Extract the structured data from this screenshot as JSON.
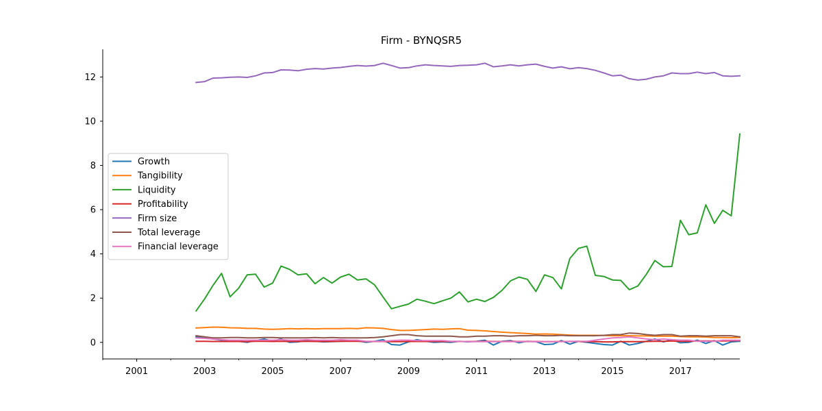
{
  "chart_data": {
    "type": "line",
    "title": "Firm - BYNQSR5",
    "xlabel": "",
    "ylabel": "",
    "xlim": [
      "2000-01-01",
      "2018-10-01"
    ],
    "ylim": [
      -0.75,
      13.25
    ],
    "x_ticks": [
      "2001",
      "2003",
      "2005",
      "2007",
      "2009",
      "2011",
      "2013",
      "2015",
      "2017"
    ],
    "y_ticks": [
      0,
      2,
      4,
      6,
      8,
      10,
      12
    ],
    "grid": false,
    "legend_position": "center-left",
    "x": [
      "2002-10-01",
      "2003-01-01",
      "2003-04-01",
      "2003-07-01",
      "2003-10-01",
      "2004-01-01",
      "2004-04-01",
      "2004-07-01",
      "2004-10-01",
      "2005-01-01",
      "2005-04-01",
      "2005-07-01",
      "2005-10-01",
      "2006-01-01",
      "2006-04-01",
      "2006-07-01",
      "2006-10-01",
      "2007-01-01",
      "2007-04-01",
      "2007-07-01",
      "2007-10-01",
      "2008-01-01",
      "2008-04-01",
      "2008-07-01",
      "2008-10-01",
      "2009-01-01",
      "2009-04-01",
      "2009-07-01",
      "2009-10-01",
      "2010-01-01",
      "2010-04-01",
      "2010-07-01",
      "2010-10-01",
      "2011-01-01",
      "2011-04-01",
      "2011-07-01",
      "2011-10-01",
      "2012-01-01",
      "2012-04-01",
      "2012-07-01",
      "2012-10-01",
      "2013-01-01",
      "2013-04-01",
      "2013-07-01",
      "2013-10-01",
      "2014-01-01",
      "2014-04-01",
      "2014-07-01",
      "2014-10-01",
      "2015-01-01",
      "2015-04-01",
      "2015-07-01",
      "2015-10-01",
      "2016-01-01",
      "2016-04-01",
      "2016-07-01",
      "2016-10-01",
      "2017-01-01",
      "2017-04-01",
      "2017-07-01",
      "2017-10-01",
      "2018-01-01",
      "2018-04-01",
      "2018-07-01",
      "2018-10-01"
    ],
    "series": [
      {
        "name": "Growth",
        "color": "#1f77b4",
        "values": [
          0.25,
          0.2,
          0.15,
          0.1,
          0.05,
          0.05,
          0.0,
          0.08,
          0.15,
          0.05,
          0.15,
          0.0,
          0.02,
          0.08,
          0.05,
          0.02,
          0.03,
          0.05,
          0.06,
          0.07,
          0.0,
          0.05,
          0.12,
          -0.1,
          -0.12,
          0.02,
          0.12,
          0.05,
          0.0,
          0.02,
          0.0,
          0.05,
          0.02,
          0.05,
          0.1,
          -0.12,
          0.05,
          0.08,
          -0.02,
          0.05,
          0.03,
          -0.1,
          -0.08,
          0.08,
          -0.08,
          0.05,
          0.0,
          -0.05,
          -0.1,
          -0.12,
          0.05,
          -0.12,
          -0.05,
          0.05,
          0.15,
          0.02,
          0.12,
          -0.02,
          0.0,
          0.1,
          -0.05,
          0.08,
          -0.12,
          0.02,
          0.05
        ]
      },
      {
        "name": "Tangibility",
        "color": "#ff7f0e",
        "values": [
          0.65,
          0.67,
          0.69,
          0.68,
          0.66,
          0.65,
          0.63,
          0.63,
          0.6,
          0.59,
          0.6,
          0.62,
          0.61,
          0.62,
          0.61,
          0.62,
          0.62,
          0.62,
          0.63,
          0.62,
          0.66,
          0.65,
          0.63,
          0.58,
          0.54,
          0.54,
          0.56,
          0.58,
          0.6,
          0.59,
          0.61,
          0.62,
          0.55,
          0.54,
          0.52,
          0.49,
          0.46,
          0.44,
          0.42,
          0.4,
          0.37,
          0.38,
          0.37,
          0.35,
          0.33,
          0.32,
          0.32,
          0.32,
          0.31,
          0.3,
          0.3,
          0.3,
          0.29,
          0.29,
          0.28,
          0.28,
          0.28,
          0.26,
          0.25,
          0.25,
          0.24,
          0.22,
          0.22,
          0.21,
          0.22
        ]
      },
      {
        "name": "Liquidity",
        "color": "#2ca02c",
        "values": [
          1.42,
          1.97,
          2.58,
          3.12,
          2.06,
          2.45,
          3.05,
          3.08,
          2.5,
          2.68,
          3.45,
          3.3,
          3.05,
          3.1,
          2.65,
          2.93,
          2.68,
          2.95,
          3.08,
          2.82,
          2.87,
          2.6,
          2.05,
          1.52,
          1.63,
          1.73,
          1.95,
          1.86,
          1.75,
          1.88,
          2.0,
          2.28,
          1.83,
          1.95,
          1.85,
          2.03,
          2.35,
          2.78,
          2.95,
          2.85,
          2.3,
          3.05,
          2.93,
          2.42,
          3.8,
          4.25,
          4.35,
          3.03,
          2.98,
          2.82,
          2.8,
          2.38,
          2.55,
          3.08,
          3.7,
          3.42,
          3.43,
          5.52,
          4.87,
          4.95,
          6.22,
          5.38,
          5.97,
          5.72,
          9.42
        ]
      },
      {
        "name": "Profitability",
        "color": "#d62728",
        "values": [
          0.05,
          0.05,
          0.04,
          0.04,
          0.04,
          0.04,
          0.03,
          0.05,
          0.05,
          0.04,
          0.05,
          0.04,
          0.04,
          0.05,
          0.04,
          0.04,
          0.04,
          0.05,
          0.05,
          0.05,
          0.04,
          0.04,
          0.04,
          0.03,
          0.03,
          0.04,
          0.04,
          0.04,
          0.04,
          0.04,
          0.04,
          0.04,
          0.04,
          0.04,
          0.05,
          0.04,
          0.04,
          0.05,
          0.04,
          0.04,
          0.04,
          0.03,
          0.03,
          0.04,
          0.04,
          0.04,
          0.03,
          0.03,
          0.02,
          0.02,
          0.03,
          0.03,
          0.03,
          0.04,
          0.05,
          0.05,
          0.06,
          0.05,
          0.05,
          0.06,
          0.06,
          0.06,
          0.06,
          0.07,
          0.08
        ]
      },
      {
        "name": "Firm size",
        "color": "#9467bd",
        "values": [
          11.75,
          11.79,
          11.95,
          11.96,
          11.99,
          12.0,
          11.98,
          12.05,
          12.18,
          12.2,
          12.32,
          12.31,
          12.28,
          12.35,
          12.38,
          12.36,
          12.4,
          12.43,
          12.48,
          12.52,
          12.49,
          12.52,
          12.62,
          12.52,
          12.4,
          12.42,
          12.5,
          12.55,
          12.52,
          12.5,
          12.48,
          12.52,
          12.53,
          12.55,
          12.62,
          12.46,
          12.5,
          12.55,
          12.5,
          12.55,
          12.58,
          12.48,
          12.4,
          12.46,
          12.37,
          12.42,
          12.38,
          12.3,
          12.18,
          12.05,
          12.08,
          11.92,
          11.86,
          11.9,
          12.0,
          12.05,
          12.18,
          12.15,
          12.15,
          12.22,
          12.15,
          12.2,
          12.05,
          12.03,
          12.05
        ]
      },
      {
        "name": "Total leverage",
        "color": "#8c564b",
        "values": [
          0.3,
          0.25,
          0.2,
          0.2,
          0.22,
          0.22,
          0.2,
          0.2,
          0.22,
          0.22,
          0.2,
          0.2,
          0.2,
          0.2,
          0.22,
          0.2,
          0.22,
          0.2,
          0.2,
          0.2,
          0.2,
          0.22,
          0.25,
          0.3,
          0.35,
          0.35,
          0.3,
          0.28,
          0.28,
          0.28,
          0.28,
          0.25,
          0.25,
          0.28,
          0.28,
          0.3,
          0.3,
          0.28,
          0.3,
          0.3,
          0.32,
          0.3,
          0.3,
          0.32,
          0.3,
          0.3,
          0.3,
          0.3,
          0.32,
          0.35,
          0.35,
          0.42,
          0.4,
          0.35,
          0.32,
          0.35,
          0.35,
          0.28,
          0.3,
          0.3,
          0.28,
          0.3,
          0.3,
          0.3,
          0.25
        ]
      },
      {
        "name": "Financial leverage",
        "color": "#e377c2",
        "values": [
          0.2,
          0.18,
          0.15,
          0.12,
          0.1,
          0.1,
          0.1,
          0.1,
          0.1,
          0.1,
          0.12,
          0.1,
          0.1,
          0.12,
          0.1,
          0.1,
          0.1,
          0.12,
          0.1,
          0.1,
          0.05,
          0.05,
          0.05,
          0.08,
          0.1,
          0.1,
          0.08,
          0.08,
          0.08,
          0.08,
          0.05,
          0.05,
          0.03,
          0.03,
          0.03,
          0.03,
          0.03,
          0.03,
          0.03,
          0.03,
          0.03,
          0.03,
          0.03,
          0.03,
          0.05,
          0.05,
          0.05,
          0.1,
          0.15,
          0.2,
          0.22,
          0.25,
          0.2,
          0.15,
          0.12,
          0.15,
          0.12,
          0.1,
          0.1,
          0.05,
          0.05,
          0.05,
          0.1,
          0.1,
          0.1
        ]
      }
    ]
  }
}
